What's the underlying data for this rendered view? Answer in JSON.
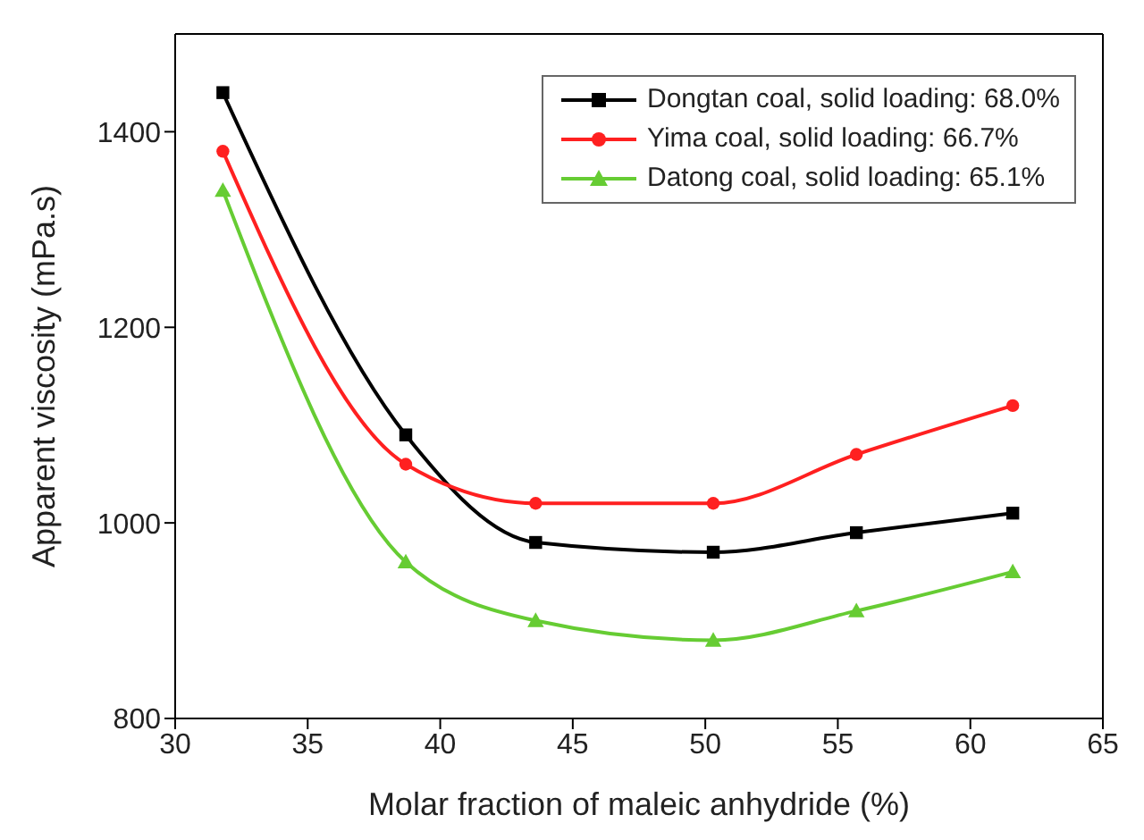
{
  "chart_data": {
    "type": "line",
    "xlabel": "Molar fraction of maleic anhydride (%)",
    "ylabel": "Apparent viscosity (mPa.s)",
    "x": [
      31.8,
      38.7,
      43.6,
      50.3,
      55.7,
      61.6
    ],
    "series": [
      {
        "name": "Dongtan coal, solid loading: 68.0%",
        "color": "#000000",
        "marker": "square",
        "values": [
          1440,
          1090,
          980,
          970,
          990,
          1010
        ]
      },
      {
        "name": "Yima coal, solid loading: 66.7%",
        "color": "#ff2020",
        "marker": "circle",
        "values": [
          1380,
          1060,
          1020,
          1020,
          1070,
          1120
        ]
      },
      {
        "name": "Datong coal, solid loading: 65.1%",
        "color": "#66cc33",
        "marker": "triangle",
        "values": [
          1340,
          960,
          900,
          880,
          910,
          950
        ]
      }
    ],
    "xlim": [
      30,
      65
    ],
    "xticks": [
      30,
      35,
      40,
      45,
      50,
      55,
      60,
      65
    ],
    "ylim": [
      800,
      1500
    ],
    "yticks": [
      800,
      1000,
      1200,
      1400
    ],
    "legend": "top right",
    "line_style": "solid"
  }
}
